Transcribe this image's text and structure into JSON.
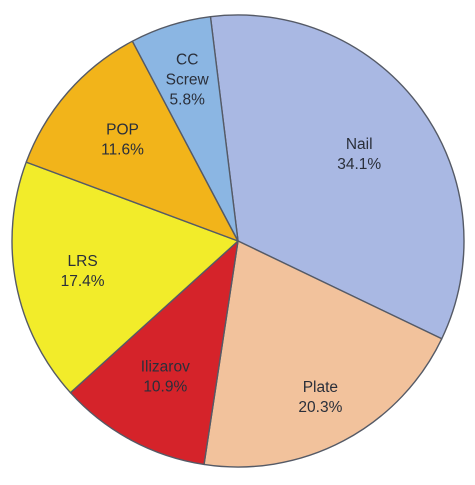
{
  "chart_data": {
    "type": "pie",
    "title": "",
    "slices": [
      {
        "label": "Nail",
        "percent_label": "34.1%",
        "value": 34.1,
        "color": "#a9b8e3"
      },
      {
        "label": "Plate",
        "percent_label": "20.3%",
        "value": 20.3,
        "color": "#f2c29c"
      },
      {
        "label": "Ilizarov",
        "percent_label": "10.9%",
        "value": 10.9,
        "color": "#d5232a"
      },
      {
        "label": "LRS",
        "percent_label": "17.4%",
        "value": 17.4,
        "color": "#f2ec2a"
      },
      {
        "label": "POP",
        "percent_label": "11.6%",
        "value": 11.6,
        "color": "#f2b41a"
      },
      {
        "label": "CC\nScrew",
        "percent_label": "5.8%",
        "value": 5.8,
        "color": "#8bb6e3"
      }
    ],
    "start_angle_deg": -7,
    "direction": "clockwise",
    "legend": "none"
  }
}
